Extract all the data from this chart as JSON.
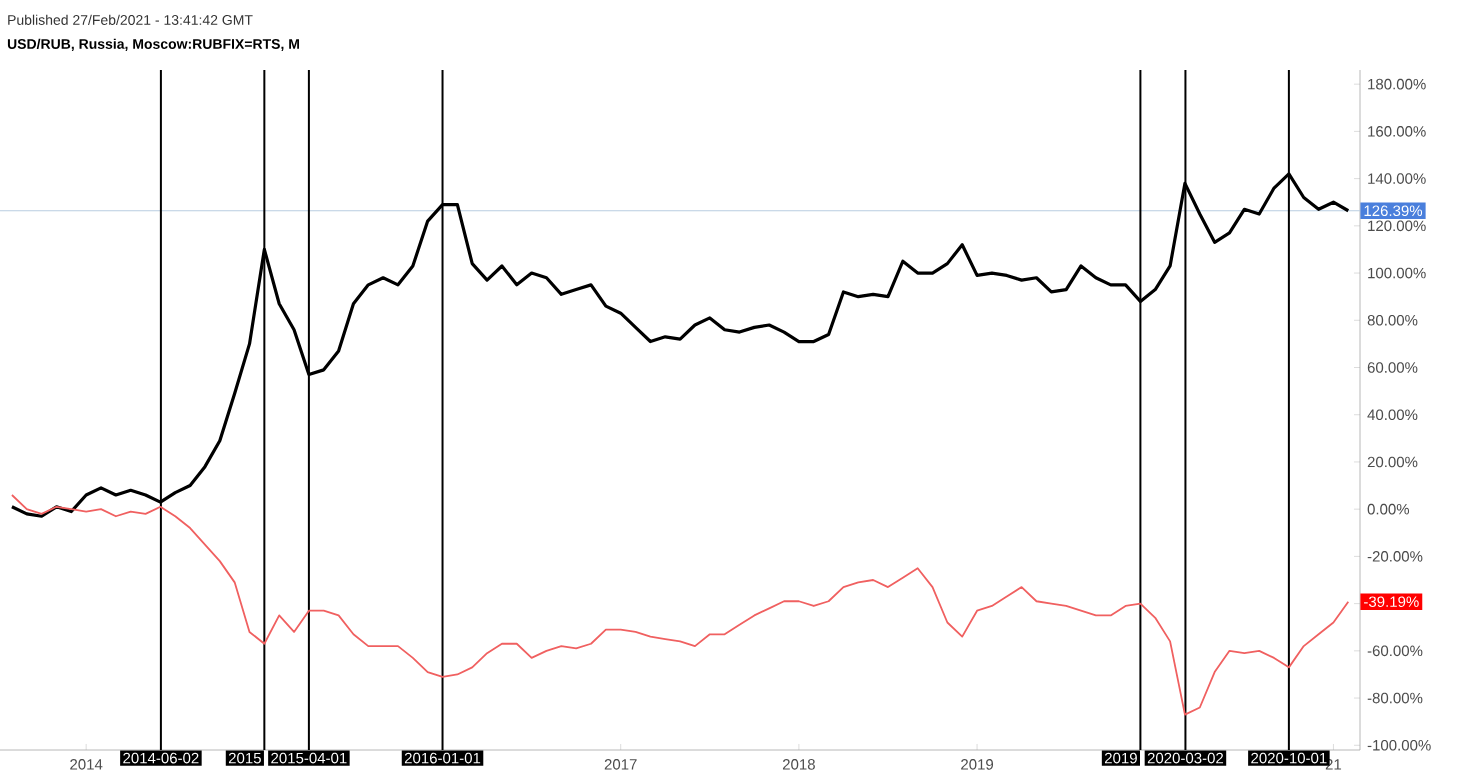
{
  "chart_data": {
    "type": "line",
    "subtitle": "Published 27/Feb/2021 - 13:41:42 GMT",
    "title": "USD/RUB, Russia, Moscow:RUBFIX=RTS, M",
    "x": [
      "2013-08",
      "2013-09",
      "2013-10",
      "2013-11",
      "2013-12",
      "2014-01",
      "2014-02",
      "2014-03",
      "2014-04",
      "2014-05",
      "2014-06",
      "2014-07",
      "2014-08",
      "2014-09",
      "2014-10",
      "2014-11",
      "2014-12",
      "2015-01",
      "2015-02",
      "2015-03",
      "2015-04",
      "2015-05",
      "2015-06",
      "2015-07",
      "2015-08",
      "2015-09",
      "2015-10",
      "2015-11",
      "2015-12",
      "2016-01",
      "2016-02",
      "2016-03",
      "2016-04",
      "2016-05",
      "2016-06",
      "2016-07",
      "2016-08",
      "2016-09",
      "2016-10",
      "2016-11",
      "2016-12",
      "2017-01",
      "2017-02",
      "2017-03",
      "2017-04",
      "2017-05",
      "2017-06",
      "2017-07",
      "2017-08",
      "2017-09",
      "2017-10",
      "2017-11",
      "2017-12",
      "2018-01",
      "2018-02",
      "2018-03",
      "2018-04",
      "2018-05",
      "2018-06",
      "2018-07",
      "2018-08",
      "2018-09",
      "2018-10",
      "2018-11",
      "2018-12",
      "2019-01",
      "2019-02",
      "2019-03",
      "2019-04",
      "2019-05",
      "2019-06",
      "2019-07",
      "2019-08",
      "2019-09",
      "2019-10",
      "2019-11",
      "2019-12",
      "2020-01",
      "2020-02",
      "2020-03",
      "2020-04",
      "2020-05",
      "2020-06",
      "2020-07",
      "2020-08",
      "2020-09",
      "2020-10",
      "2020-11",
      "2020-12",
      "2021-01",
      "2021-02"
    ],
    "series": [
      {
        "color": "#000000",
        "values": [
          1,
          -2,
          -3,
          1,
          -1,
          6,
          9,
          6,
          8,
          6,
          3,
          7,
          10,
          18,
          29,
          49,
          70,
          110,
          87,
          76,
          57,
          59,
          67,
          87,
          95,
          98,
          95,
          103,
          122,
          129,
          129,
          104,
          97,
          103,
          95,
          100,
          98,
          91,
          93,
          95,
          86,
          83,
          77,
          71,
          73,
          72,
          78,
          81,
          76,
          75,
          77,
          78,
          75,
          71,
          71,
          74,
          92,
          90,
          91,
          90,
          105,
          100,
          100,
          104,
          112,
          99,
          100,
          99,
          97,
          98,
          92,
          93,
          103,
          98,
          95,
          95,
          88,
          93,
          103,
          138,
          125,
          113,
          117,
          127,
          125,
          136,
          142,
          132,
          127,
          130,
          126.39
        ],
        "value_labels": [
          null,
          null,
          null,
          null,
          null,
          null,
          null,
          null,
          null,
          null,
          null,
          null,
          null,
          null,
          null,
          null,
          null,
          null,
          null,
          null,
          null,
          null,
          null,
          null,
          null,
          null,
          null,
          null,
          null,
          null,
          null,
          null,
          null,
          null,
          null,
          null,
          null,
          null,
          null,
          null,
          null,
          null,
          null,
          null,
          null,
          null,
          null,
          null,
          null,
          null,
          null,
          null,
          null,
          null,
          null,
          null,
          null,
          null,
          null,
          null,
          null,
          null,
          null,
          null,
          null,
          null,
          null,
          null,
          null,
          null,
          null,
          null,
          null,
          null,
          null,
          null,
          null,
          null,
          null,
          null,
          null,
          null,
          null,
          null,
          null,
          null,
          null,
          null,
          null,
          null,
          "126.39%"
        ]
      },
      {
        "color": "#f06060",
        "values": [
          6,
          0,
          -2,
          1,
          0,
          -1,
          0,
          -3,
          -1,
          -2,
          1,
          -3,
          -8,
          -15,
          -22,
          -31,
          -52,
          -57,
          -45,
          -52,
          -43,
          -43,
          -45,
          -53,
          -58,
          -58,
          -58,
          -63,
          -69,
          -71,
          -70,
          -67,
          -61,
          -57,
          -57,
          -63,
          -60,
          -58,
          -59,
          -57,
          -51,
          -51,
          -52,
          -54,
          -55,
          -56,
          -58,
          -53,
          -53,
          -49,
          -45,
          -42,
          -39,
          -39,
          -41,
          -39,
          -33,
          -31,
          -30,
          -33,
          -29,
          -25,
          -33,
          -48,
          -54,
          -43,
          -41,
          -37,
          -33,
          -39,
          -40,
          -41,
          -43,
          -45,
          -45,
          -41,
          -40,
          -46,
          -56,
          -87,
          -84,
          -69,
          -60,
          -61,
          -60,
          -63,
          -67,
          -58,
          -53,
          -48,
          -39.19
        ],
        "value_labels": [
          null,
          null,
          null,
          null,
          null,
          null,
          null,
          null,
          null,
          null,
          null,
          null,
          null,
          null,
          null,
          null,
          null,
          null,
          null,
          null,
          null,
          null,
          null,
          null,
          null,
          null,
          null,
          null,
          null,
          null,
          null,
          null,
          null,
          null,
          null,
          null,
          null,
          null,
          null,
          null,
          null,
          null,
          null,
          null,
          null,
          null,
          null,
          null,
          null,
          null,
          null,
          null,
          null,
          null,
          null,
          null,
          null,
          null,
          null,
          null,
          null,
          null,
          null,
          null,
          null,
          null,
          null,
          null,
          null,
          null,
          null,
          null,
          null,
          null,
          null,
          null,
          null,
          null,
          null,
          null,
          null,
          null,
          null,
          null,
          null,
          null,
          null,
          null,
          null,
          null,
          "-39.19%"
        ]
      }
    ],
    "xlim": [
      "2013-07-07",
      "2021-02-25"
    ],
    "xticks": [
      {
        "value": "2014",
        "label": "2014"
      },
      {
        "value": "2017",
        "label": "2017"
      },
      {
        "value": "2018",
        "label": "2018"
      },
      {
        "value": "2019",
        "label": "2019"
      },
      {
        "value": "2021",
        "label": "21"
      }
    ],
    "ylim": [
      -102,
      186
    ],
    "yticks": [
      {
        "value": -100,
        "label": "-100.00%"
      },
      {
        "value": -80,
        "label": "-80.00%"
      },
      {
        "value": -60,
        "label": "-60.00%"
      },
      {
        "value": -40,
        "label": null
      },
      {
        "value": -20,
        "label": "-20.00%"
      },
      {
        "value": 0,
        "label": "0.00%"
      },
      {
        "value": 20,
        "label": "20.00%"
      },
      {
        "value": 40,
        "label": "40.00%"
      },
      {
        "value": 60,
        "label": "60.00%"
      },
      {
        "value": 80,
        "label": "80.00%"
      },
      {
        "value": 100,
        "label": "100.00%"
      },
      {
        "value": 120,
        "label": "120.00%"
      },
      {
        "value": 140,
        "label": "140.00%"
      },
      {
        "value": 160,
        "label": "160.00%"
      },
      {
        "value": 180,
        "label": "180.00%"
      }
    ],
    "ref_lines": [
      {
        "axis": "y",
        "value": 126.39,
        "color": "#b8cde0"
      },
      {
        "axis": "x",
        "value": "2014-06-02",
        "label": "2014-06-02",
        "color": "#000000"
      },
      {
        "axis": "x",
        "value": "2015-01-01",
        "label": "2015",
        "color": "#000000"
      },
      {
        "axis": "x",
        "value": "2015-04-01",
        "label": "2015-04-01",
        "color": "#000000"
      },
      {
        "axis": "x",
        "value": "2016-01-01",
        "label": "2016-01-01",
        "color": "#000000"
      },
      {
        "axis": "x",
        "value": "2019-12-01",
        "label": "2019",
        "color": "#000000"
      },
      {
        "axis": "x",
        "value": "2020-03-02",
        "label": "2020-03-02",
        "color": "#000000"
      },
      {
        "axis": "x",
        "value": "2020-10-01",
        "label": "2020-10-01",
        "color": "#000000"
      }
    ],
    "grid": false,
    "marker": "none",
    "line_style": "solid"
  }
}
